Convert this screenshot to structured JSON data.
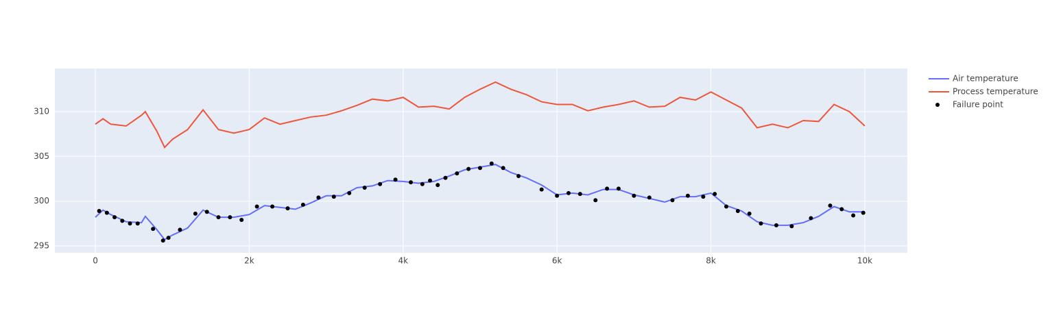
{
  "chart_data": {
    "type": "line",
    "x": [
      0,
      100,
      200,
      400,
      600,
      650,
      800,
      900,
      1000,
      1200,
      1400,
      1600,
      1800,
      2000,
      2200,
      2400,
      2600,
      2800,
      3000,
      3200,
      3400,
      3600,
      3800,
      4000,
      4200,
      4400,
      4600,
      4800,
      5000,
      5200,
      5400,
      5600,
      5800,
      6000,
      6200,
      6400,
      6600,
      6800,
      7000,
      7200,
      7400,
      7600,
      7800,
      8000,
      8200,
      8400,
      8600,
      8800,
      9000,
      9200,
      9400,
      9600,
      9800,
      10000
    ],
    "series": [
      {
        "name": "Air temperature",
        "color": "#636efa",
        "mode": "lines",
        "values": [
          298.2,
          299,
          298.5,
          297.7,
          297.6,
          298.3,
          296.8,
          295.7,
          296.2,
          297,
          299,
          298.2,
          298.2,
          298.5,
          299.5,
          299.3,
          299.1,
          299.8,
          300.6,
          300.6,
          301.5,
          301.7,
          302.3,
          302.2,
          302,
          302.2,
          302.8,
          303.5,
          303.8,
          304.1,
          303.2,
          302.6,
          301.8,
          300.7,
          300.9,
          300.7,
          301.3,
          301.3,
          300.7,
          300.3,
          299.9,
          300.5,
          300.5,
          300.9,
          299.5,
          298.9,
          297.7,
          297.3,
          297.3,
          297.6,
          298.3,
          299.4,
          298.8,
          298.8
        ]
      },
      {
        "name": "Process temperature",
        "color": "#ef553b",
        "mode": "lines",
        "values": [
          308.6,
          309.2,
          308.6,
          308.4,
          309.6,
          310,
          307.8,
          306,
          306.9,
          308,
          310.2,
          308,
          307.6,
          308,
          309.3,
          308.6,
          309,
          309.4,
          309.6,
          310.1,
          310.7,
          311.4,
          311.2,
          311.6,
          310.5,
          310.6,
          310.3,
          311.6,
          312.5,
          313.3,
          312.5,
          311.9,
          311.1,
          310.8,
          310.8,
          310.1,
          310.5,
          310.8,
          311.2,
          310.5,
          310.6,
          311.6,
          311.3,
          312.2,
          311.3,
          310.4,
          308.2,
          308.6,
          308.2,
          309,
          308.9,
          310.8,
          310,
          308.4
        ]
      },
      {
        "name": "Failure point",
        "color": "#000000",
        "mode": "markers",
        "x": [
          50,
          150,
          250,
          350,
          450,
          550,
          750,
          880,
          950,
          1100,
          1300,
          1450,
          1600,
          1750,
          1900,
          2100,
          2300,
          2500,
          2700,
          2900,
          3100,
          3300,
          3500,
          3700,
          3900,
          4100,
          4250,
          4350,
          4450,
          4550,
          4700,
          4850,
          5000,
          5150,
          5300,
          5500,
          5800,
          6000,
          6150,
          6300,
          6500,
          6650,
          6800,
          7000,
          7200,
          7500,
          7700,
          7900,
          8050,
          8200,
          8350,
          8500,
          8650,
          8850,
          9050,
          9300,
          9550,
          9700,
          9850,
          9980
        ],
        "values": [
          298.9,
          298.7,
          298.2,
          297.8,
          297.5,
          297.5,
          296.9,
          295.6,
          295.9,
          296.8,
          298.6,
          298.8,
          298.2,
          298.2,
          297.9,
          299.4,
          299.4,
          299.2,
          299.6,
          300.4,
          300.5,
          300.9,
          301.5,
          301.9,
          302.4,
          302.1,
          301.9,
          302.3,
          301.8,
          302.6,
          303.1,
          303.6,
          303.7,
          304.2,
          303.7,
          302.8,
          301.3,
          300.6,
          300.9,
          300.8,
          300.1,
          301.4,
          301.4,
          300.6,
          300.4,
          300.1,
          300.6,
          300.5,
          300.8,
          299.4,
          298.9,
          298.6,
          297.5,
          297.3,
          297.2,
          298.1,
          299.5,
          299.1,
          298.4,
          298.7
        ]
      }
    ],
    "xlim": [
      -526,
      10553
    ],
    "ylim": [
      294.23,
      314.82
    ],
    "xticks": [
      0,
      {
        "value": 2000,
        "label": "2k"
      },
      {
        "value": 4000,
        "label": "4k"
      },
      {
        "value": 6000,
        "label": "6k"
      },
      {
        "value": 8000,
        "label": "8k"
      },
      {
        "value": 10000,
        "label": "10k"
      }
    ],
    "yticks": [
      295,
      300,
      305,
      310
    ],
    "grid": true
  }
}
